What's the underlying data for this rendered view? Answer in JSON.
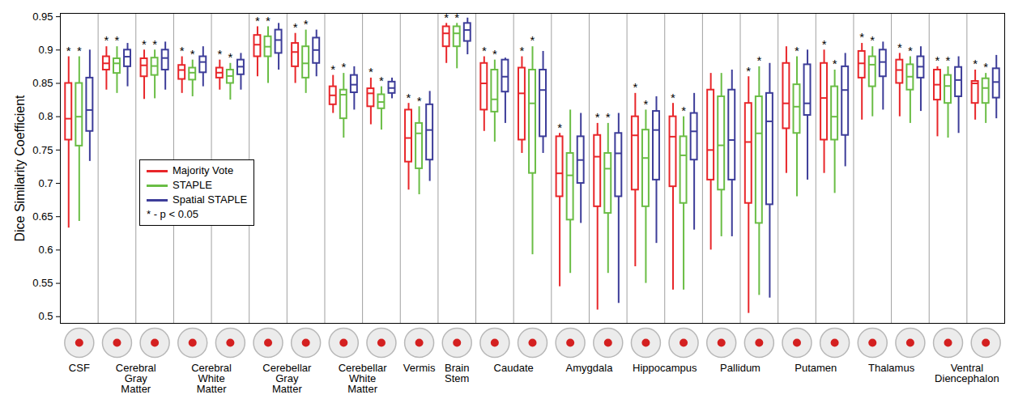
{
  "chart_data": {
    "type": "box",
    "y_label": "Dice Similarity Coefficient",
    "ylim": [
      0.49,
      0.955
    ],
    "yticks": [
      0.5,
      0.55,
      0.6,
      0.65,
      0.7,
      0.75,
      0.8,
      0.85,
      0.9,
      0.95
    ],
    "grid": false,
    "legend": "left",
    "significance_symbol": "*",
    "significance_note": "* - p < 0.05",
    "categories": [
      "CSF",
      "Cerebral Gray Matter",
      null,
      "Cerebral White Matter",
      null,
      "Cerebellar Gray Matter",
      null,
      "Cerebellar White Matter",
      null,
      "Vermis",
      "Brain Stem",
      "Caudate",
      null,
      "Amygdala",
      null,
      "Hippocampus",
      null,
      "Pallidum",
      null,
      "Putamen",
      null,
      "Thalamus",
      null,
      "Ventral Diencephalon",
      null
    ],
    "series": [
      {
        "name": "Majority Vote",
        "color": "#e8262a",
        "values": [
          [
            0.633,
            0.765,
            0.797,
            0.85,
            0.89
          ],
          [
            0.84,
            0.87,
            0.88,
            0.89,
            0.905
          ],
          [
            0.826,
            0.86,
            0.877,
            0.887,
            0.9
          ],
          [
            0.835,
            0.856,
            0.87,
            0.877,
            0.89
          ],
          [
            0.84,
            0.858,
            0.866,
            0.873,
            0.885
          ],
          [
            0.86,
            0.89,
            0.908,
            0.922,
            0.935
          ],
          [
            0.85,
            0.875,
            0.897,
            0.91,
            0.925
          ],
          [
            0.805,
            0.818,
            0.832,
            0.845,
            0.862
          ],
          [
            0.788,
            0.815,
            0.835,
            0.842,
            0.858
          ],
          [
            0.69,
            0.732,
            0.768,
            0.81,
            0.82
          ],
          [
            0.88,
            0.905,
            0.925,
            0.935,
            0.94
          ],
          [
            0.778,
            0.81,
            0.85,
            0.88,
            0.89
          ],
          [
            0.745,
            0.765,
            0.835,
            0.873,
            0.89
          ],
          [
            0.545,
            0.68,
            0.715,
            0.77,
            0.775
          ],
          [
            0.51,
            0.665,
            0.74,
            0.772,
            0.79
          ],
          [
            0.575,
            0.69,
            0.772,
            0.8,
            0.835
          ],
          [
            0.54,
            0.695,
            0.77,
            0.8,
            0.82
          ],
          [
            0.6,
            0.705,
            0.75,
            0.84,
            0.865
          ],
          [
            0.505,
            0.67,
            0.762,
            0.82,
            0.86
          ],
          [
            0.715,
            0.782,
            0.82,
            0.88,
            0.905
          ],
          [
            0.715,
            0.765,
            0.828,
            0.88,
            0.9
          ],
          [
            0.795,
            0.858,
            0.88,
            0.898,
            0.91
          ],
          [
            0.8,
            0.85,
            0.87,
            0.885,
            0.895
          ],
          [
            0.77,
            0.825,
            0.848,
            0.87,
            0.875
          ],
          [
            0.795,
            0.82,
            0.85,
            0.853,
            0.87
          ]
        ],
        "significant": [
          true,
          true,
          true,
          true,
          true,
          true,
          true,
          true,
          true,
          true,
          true,
          true,
          true,
          true,
          true,
          true,
          true,
          false,
          true,
          false,
          true,
          true,
          true,
          true,
          true
        ]
      },
      {
        "name": "STAPLE",
        "color": "#6abd45",
        "values": [
          [
            0.643,
            0.756,
            0.8,
            0.85,
            0.89
          ],
          [
            0.835,
            0.865,
            0.88,
            0.887,
            0.905
          ],
          [
            0.827,
            0.862,
            0.876,
            0.888,
            0.9
          ],
          [
            0.83,
            0.855,
            0.866,
            0.873,
            0.885
          ],
          [
            0.825,
            0.85,
            0.861,
            0.87,
            0.88
          ],
          [
            0.85,
            0.89,
            0.905,
            0.92,
            0.935
          ],
          [
            0.835,
            0.858,
            0.88,
            0.905,
            0.93
          ],
          [
            0.768,
            0.797,
            0.833,
            0.84,
            0.865
          ],
          [
            0.78,
            0.812,
            0.822,
            0.833,
            0.845
          ],
          [
            0.683,
            0.722,
            0.775,
            0.79,
            0.815
          ],
          [
            0.872,
            0.905,
            0.925,
            0.935,
            0.94
          ],
          [
            0.762,
            0.807,
            0.826,
            0.87,
            0.885
          ],
          [
            0.593,
            0.715,
            0.82,
            0.87,
            0.905
          ],
          [
            0.565,
            0.645,
            0.712,
            0.745,
            0.81
          ],
          [
            0.565,
            0.655,
            0.722,
            0.745,
            0.79
          ],
          [
            0.55,
            0.665,
            0.738,
            0.78,
            0.81
          ],
          [
            0.54,
            0.67,
            0.742,
            0.77,
            0.8
          ],
          [
            0.62,
            0.69,
            0.757,
            0.83,
            0.865
          ],
          [
            0.532,
            0.64,
            0.775,
            0.83,
            0.875
          ],
          [
            0.68,
            0.775,
            0.815,
            0.848,
            0.89
          ],
          [
            0.685,
            0.765,
            0.8,
            0.845,
            0.87
          ],
          [
            0.8,
            0.845,
            0.878,
            0.89,
            0.905
          ],
          [
            0.79,
            0.84,
            0.86,
            0.878,
            0.89
          ],
          [
            0.768,
            0.82,
            0.846,
            0.862,
            0.875
          ],
          [
            0.79,
            0.82,
            0.843,
            0.857,
            0.865
          ]
        ],
        "significant": [
          true,
          true,
          true,
          true,
          true,
          true,
          true,
          true,
          true,
          true,
          true,
          true,
          true,
          false,
          true,
          true,
          true,
          false,
          true,
          true,
          true,
          true,
          true,
          true,
          true
        ]
      },
      {
        "name": "Spatial STAPLE",
        "color": "#3d3d99",
        "values": [
          [
            0.733,
            0.778,
            0.81,
            0.858,
            0.9
          ],
          [
            0.845,
            0.875,
            0.89,
            0.9,
            0.91
          ],
          [
            0.84,
            0.87,
            0.888,
            0.9,
            0.912
          ],
          [
            0.845,
            0.866,
            0.882,
            0.89,
            0.905
          ],
          [
            0.84,
            0.863,
            0.875,
            0.885,
            0.895
          ],
          [
            0.87,
            0.895,
            0.915,
            0.93,
            0.94
          ],
          [
            0.86,
            0.88,
            0.9,
            0.918,
            0.93
          ],
          [
            0.81,
            0.836,
            0.848,
            0.862,
            0.875
          ],
          [
            0.827,
            0.835,
            0.843,
            0.852,
            0.858
          ],
          [
            0.703,
            0.735,
            0.78,
            0.818,
            0.838
          ],
          [
            0.893,
            0.913,
            0.93,
            0.94,
            0.948
          ],
          [
            0.79,
            0.837,
            0.86,
            0.885,
            0.888
          ],
          [
            0.745,
            0.77,
            0.84,
            0.87,
            0.898
          ],
          [
            0.64,
            0.7,
            0.735,
            0.77,
            0.805
          ],
          [
            0.52,
            0.68,
            0.745,
            0.775,
            0.805
          ],
          [
            0.61,
            0.705,
            0.78,
            0.808,
            0.83
          ],
          [
            0.63,
            0.735,
            0.778,
            0.805,
            0.835
          ],
          [
            0.62,
            0.705,
            0.765,
            0.84,
            0.87
          ],
          [
            0.528,
            0.668,
            0.793,
            0.835,
            0.88
          ],
          [
            0.705,
            0.802,
            0.82,
            0.878,
            0.9
          ],
          [
            0.725,
            0.772,
            0.84,
            0.875,
            0.895
          ],
          [
            0.81,
            0.86,
            0.882,
            0.9,
            0.912
          ],
          [
            0.808,
            0.858,
            0.875,
            0.89,
            0.905
          ],
          [
            0.775,
            0.83,
            0.855,
            0.874,
            0.89
          ],
          [
            0.797,
            0.828,
            0.852,
            0.872,
            0.892
          ]
        ],
        "significant": [
          false,
          false,
          false,
          false,
          false,
          false,
          false,
          false,
          false,
          false,
          false,
          false,
          false,
          false,
          false,
          false,
          false,
          false,
          false,
          false,
          false,
          false,
          false,
          false,
          false
        ]
      }
    ]
  }
}
